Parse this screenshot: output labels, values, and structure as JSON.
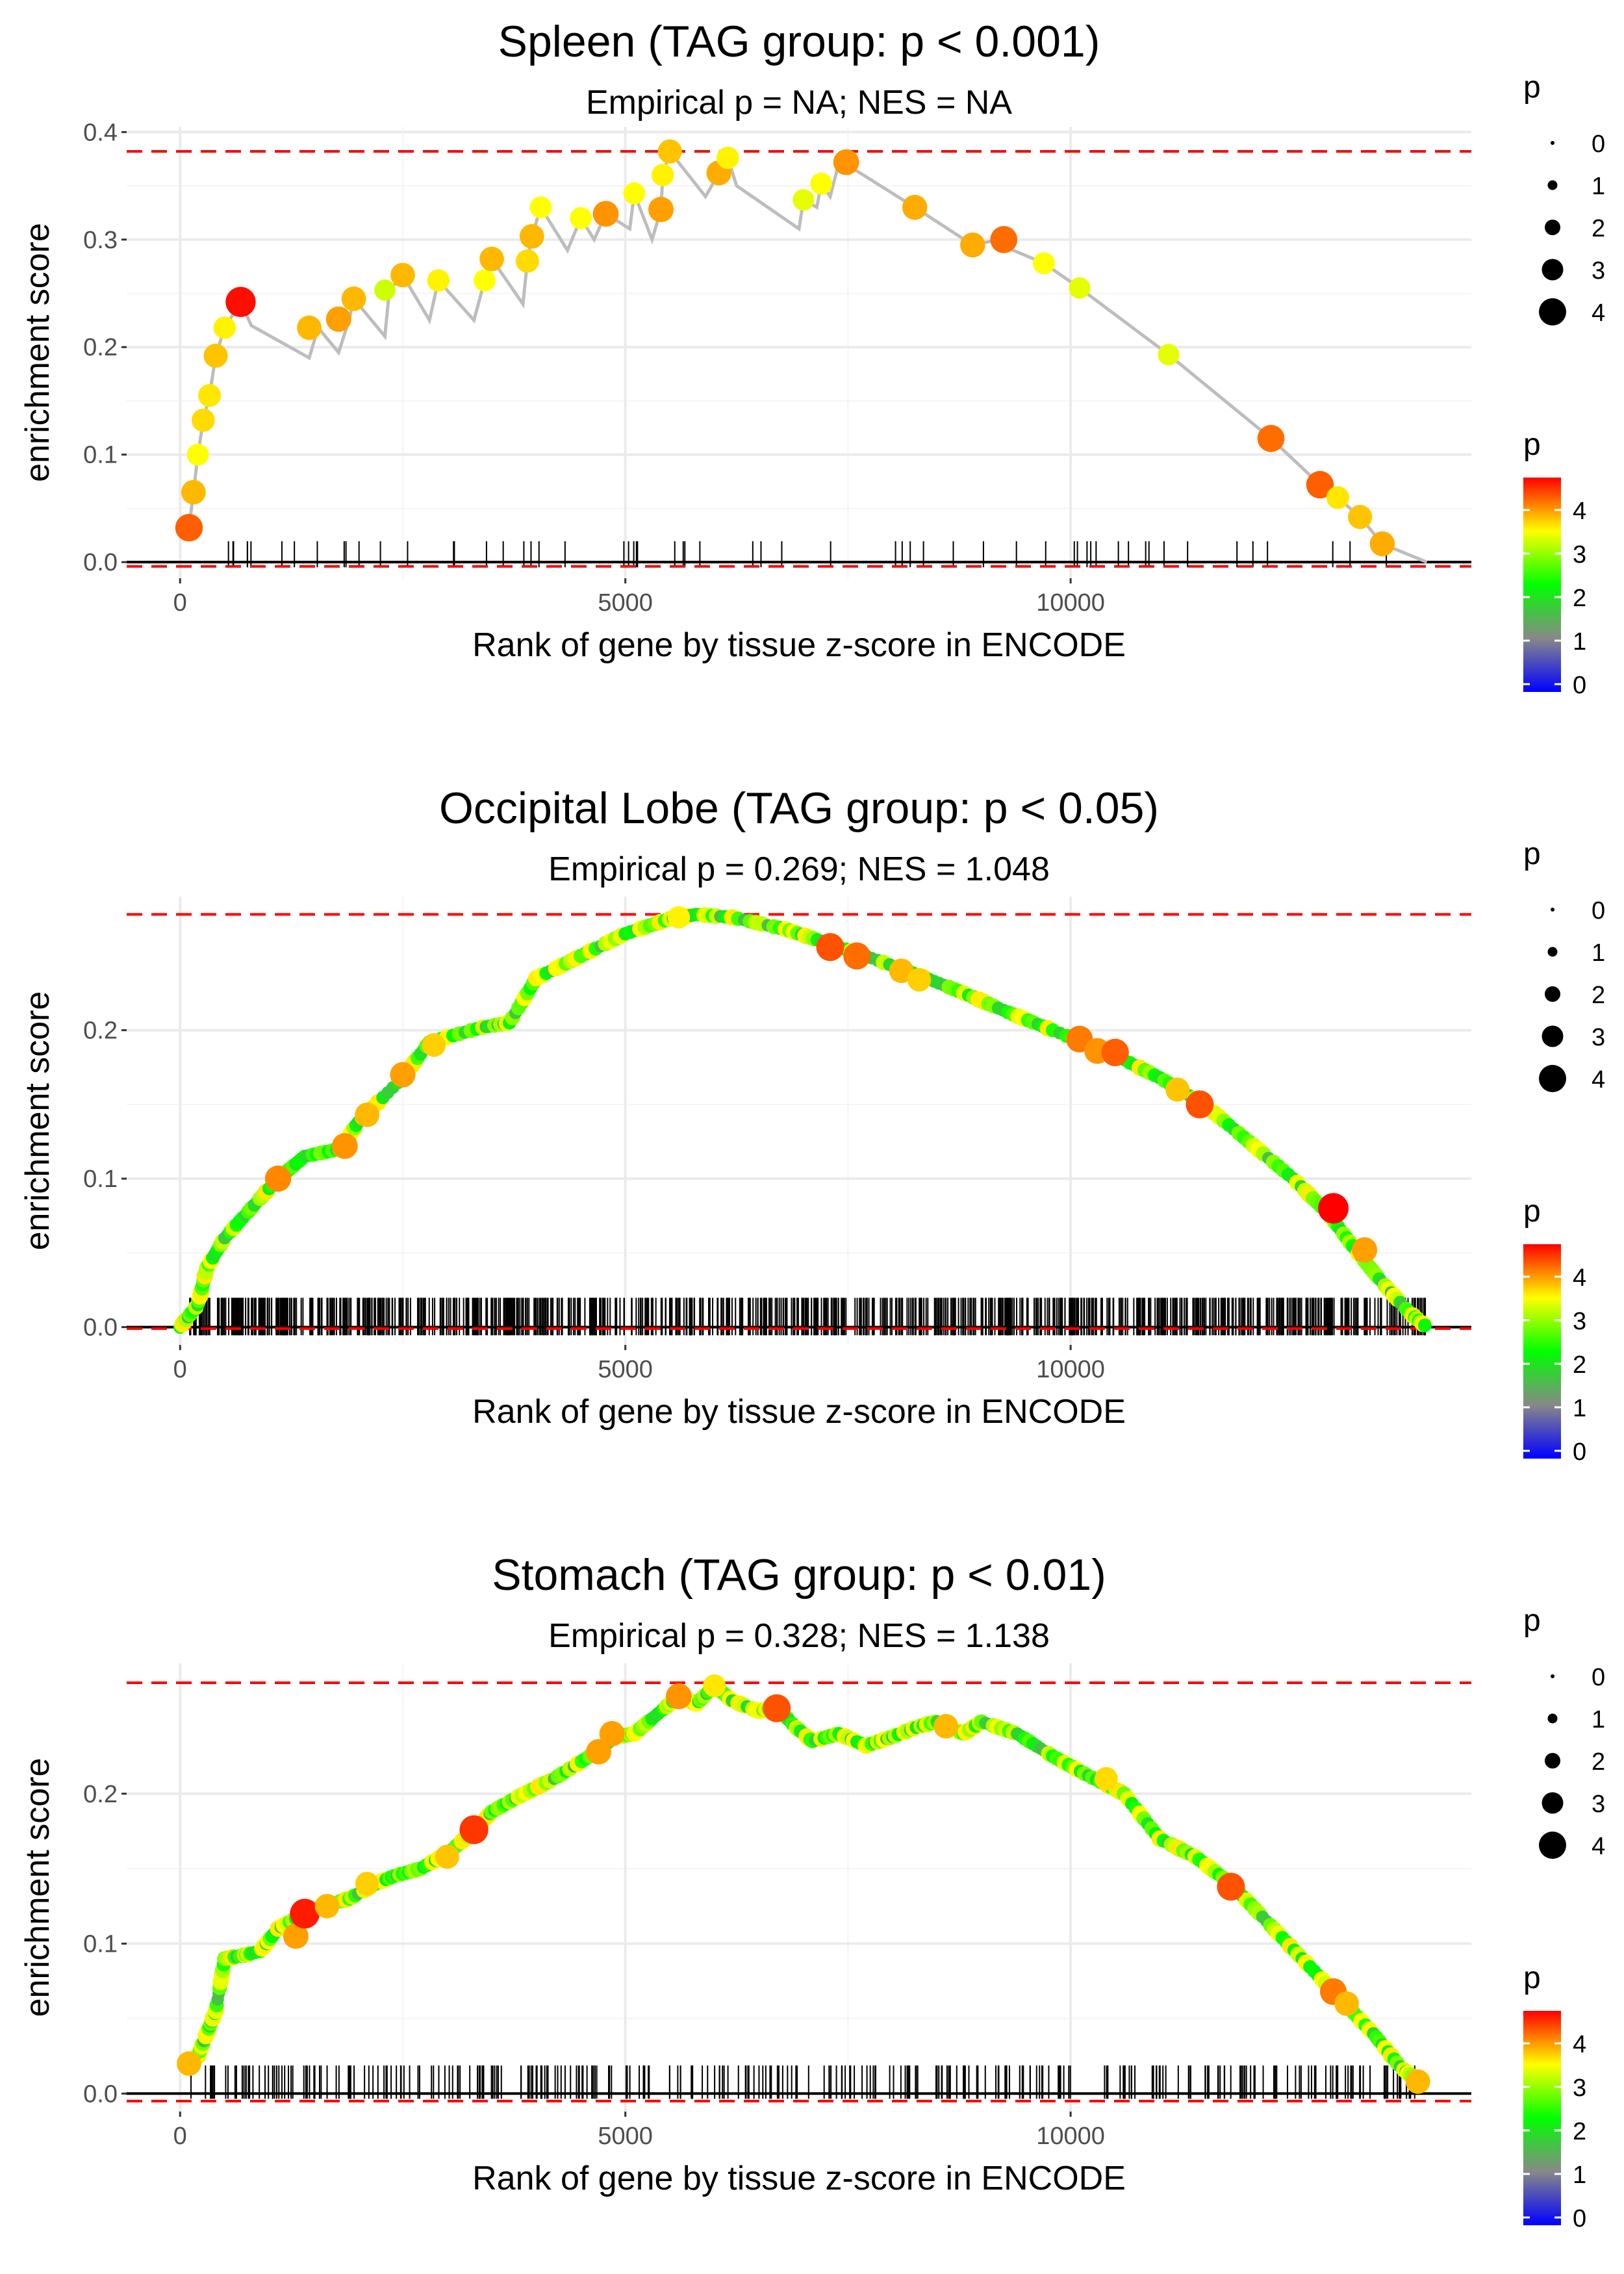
{
  "chart_data": [
    {
      "type": "line",
      "title": "Spleen (TAG group: p < 0.001)",
      "subtitle": "Empirical p = NA; NES = NA",
      "xlabel": "Rank of gene by tissue z-score in ENCODE",
      "ylabel": "enrichment score",
      "xlim": [
        -600,
        14500
      ],
      "ylim": [
        -0.015,
        0.405
      ],
      "xticks": [
        0,
        5000,
        10000
      ],
      "xtick_labels": [
        "0",
        "5000",
        "10000"
      ],
      "yticks": [
        0.0,
        0.1,
        0.2,
        0.3,
        0.4
      ],
      "ytick_labels": [
        "0.0",
        "0.1",
        "0.2",
        "0.3",
        "0.4"
      ],
      "max_es": 0.382,
      "min_es": -0.004,
      "series": [
        {
          "name": "running enrichment score",
          "x": [
            100,
            150,
            200,
            260,
            330,
            400,
            500,
            680,
            800,
            1450,
            1550,
            1780,
            1900,
            1950,
            2300,
            2350,
            2500,
            2800,
            2900,
            3300,
            3420,
            3500,
            3850,
            3900,
            3950,
            4050,
            4350,
            4500,
            4650,
            4780,
            5050,
            5100,
            5300,
            5400,
            5420,
            5500,
            5900,
            6050,
            6150,
            6250,
            6950,
            7000,
            7150,
            7200,
            7300,
            7400,
            7480,
            8250,
            8900,
            9200,
            9300,
            9700,
            10100,
            11100,
            12250,
            12800,
            13000,
            13250,
            13500,
            14000
          ],
          "y": [
            0.032,
            0.065,
            0.1,
            0.132,
            0.155,
            0.192,
            0.218,
            0.242,
            0.22,
            0.19,
            0.218,
            0.195,
            0.226,
            0.245,
            0.21,
            0.253,
            0.267,
            0.225,
            0.262,
            0.225,
            0.262,
            0.282,
            0.24,
            0.28,
            0.303,
            0.33,
            0.29,
            0.32,
            0.3,
            0.324,
            0.31,
            0.343,
            0.3,
            0.328,
            0.36,
            0.382,
            0.34,
            0.362,
            0.376,
            0.35,
            0.31,
            0.337,
            0.33,
            0.352,
            0.34,
            0.372,
            0.37,
            0.33,
            0.295,
            0.3,
            0.292,
            0.278,
            0.255,
            0.193,
            0.115,
            0.072,
            0.06,
            0.042,
            0.017,
            0.0
          ]
        },
        {
          "name": "genes",
          "points": [
            {
              "x": 100,
              "y": 0.032,
              "p": 4.3
            },
            {
              "x": 150,
              "y": 0.065,
              "p": 3.6
            },
            {
              "x": 200,
              "y": 0.1,
              "p": 3.0
            },
            {
              "x": 260,
              "y": 0.132,
              "p": 3.3
            },
            {
              "x": 330,
              "y": 0.155,
              "p": 3.2
            },
            {
              "x": 400,
              "y": 0.192,
              "p": 3.5
            },
            {
              "x": 500,
              "y": 0.218,
              "p": 3.1
            },
            {
              "x": 680,
              "y": 0.242,
              "p": 4.9
            },
            {
              "x": 1450,
              "y": 0.218,
              "p": 3.6
            },
            {
              "x": 1780,
              "y": 0.226,
              "p": 3.8
            },
            {
              "x": 1950,
              "y": 0.245,
              "p": 3.6
            },
            {
              "x": 2300,
              "y": 0.253,
              "p": 2.8
            },
            {
              "x": 2500,
              "y": 0.267,
              "p": 3.6
            },
            {
              "x": 2900,
              "y": 0.262,
              "p": 3.1
            },
            {
              "x": 3420,
              "y": 0.262,
              "p": 3.0
            },
            {
              "x": 3500,
              "y": 0.282,
              "p": 3.6
            },
            {
              "x": 3900,
              "y": 0.28,
              "p": 3.3
            },
            {
              "x": 3950,
              "y": 0.303,
              "p": 3.6
            },
            {
              "x": 4050,
              "y": 0.33,
              "p": 3.0
            },
            {
              "x": 4500,
              "y": 0.32,
              "p": 3.0
            },
            {
              "x": 4780,
              "y": 0.324,
              "p": 3.9
            },
            {
              "x": 5100,
              "y": 0.343,
              "p": 3.0
            },
            {
              "x": 5400,
              "y": 0.328,
              "p": 3.8
            },
            {
              "x": 5420,
              "y": 0.36,
              "p": 3.1
            },
            {
              "x": 5500,
              "y": 0.382,
              "p": 3.5
            },
            {
              "x": 6050,
              "y": 0.362,
              "p": 3.7
            },
            {
              "x": 6150,
              "y": 0.376,
              "p": 3.1
            },
            {
              "x": 7000,
              "y": 0.337,
              "p": 2.9
            },
            {
              "x": 7200,
              "y": 0.352,
              "p": 3.0
            },
            {
              "x": 7480,
              "y": 0.372,
              "p": 3.9
            },
            {
              "x": 8250,
              "y": 0.33,
              "p": 3.7
            },
            {
              "x": 8900,
              "y": 0.295,
              "p": 3.7
            },
            {
              "x": 9250,
              "y": 0.3,
              "p": 4.2
            },
            {
              "x": 9700,
              "y": 0.278,
              "p": 3.0
            },
            {
              "x": 10100,
              "y": 0.255,
              "p": 2.9
            },
            {
              "x": 11100,
              "y": 0.193,
              "p": 2.9
            },
            {
              "x": 12250,
              "y": 0.115,
              "p": 4.2
            },
            {
              "x": 12800,
              "y": 0.072,
              "p": 4.3
            },
            {
              "x": 13000,
              "y": 0.06,
              "p": 3.2
            },
            {
              "x": 13250,
              "y": 0.042,
              "p": 3.5
            },
            {
              "x": 13500,
              "y": 0.017,
              "p": 3.7
            }
          ]
        }
      ],
      "rug": {
        "y0": 0.0,
        "y1": 0.017,
        "n": 60,
        "seed": 11,
        "start": 100,
        "end": 14000
      },
      "point_legend": {
        "title": "p",
        "labels": [
          "0",
          "1",
          "2",
          "3",
          "4"
        ]
      },
      "color_legend": {
        "title": "p",
        "labels": [
          "4",
          "3",
          "2",
          "1",
          "0"
        ],
        "colors": [
          "#ff0000",
          "#ffff00",
          "#00ff00",
          "#888888",
          "#0000ff"
        ]
      }
    },
    {
      "type": "line",
      "title": "Occipital Lobe (TAG group: p < 0.05)",
      "subtitle": "Empirical p = 0.269; NES = 1.048",
      "xlabel": "Rank of gene by tissue z-score in ENCODE",
      "ylabel": "enrichment score",
      "xlim": [
        -600,
        14500
      ],
      "ylim": [
        -0.012,
        0.29
      ],
      "xticks": [
        0,
        5000,
        10000
      ],
      "xtick_labels": [
        "0",
        "5000",
        "10000"
      ],
      "yticks": [
        0.0,
        0.1,
        0.2
      ],
      "ytick_labels": [
        "0.0",
        "0.1",
        "0.2"
      ],
      "max_es": 0.278,
      "min_es": -0.001,
      "series": [
        {
          "name": "running enrichment score",
          "x": [
            0,
            200,
            300,
            500,
            800,
            1100,
            1400,
            1800,
            2000,
            2500,
            2800,
            3400,
            3700,
            4000,
            4500,
            5000,
            5500,
            5800,
            6200,
            6800,
            7200,
            7700,
            8300,
            8800,
            9300,
            9800,
            10500,
            11000,
            11500,
            12000,
            12500,
            12900,
            13200,
            13500,
            13800,
            14000
          ],
          "y": [
            0.0,
            0.015,
            0.04,
            0.06,
            0.08,
            0.1,
            0.115,
            0.12,
            0.138,
            0.168,
            0.192,
            0.202,
            0.205,
            0.235,
            0.25,
            0.265,
            0.275,
            0.278,
            0.276,
            0.268,
            0.26,
            0.25,
            0.237,
            0.225,
            0.212,
            0.2,
            0.183,
            0.168,
            0.15,
            0.125,
            0.1,
            0.076,
            0.052,
            0.03,
            0.01,
            0.0
          ]
        },
        {
          "name": "genes",
          "dense": true,
          "highlight": [
            {
              "x": 1100,
              "y": 0.1,
              "p": 4.0
            },
            {
              "x": 1850,
              "y": 0.122,
              "p": 3.9
            },
            {
              "x": 2100,
              "y": 0.143,
              "p": 3.6
            },
            {
              "x": 2500,
              "y": 0.17,
              "p": 3.8
            },
            {
              "x": 2850,
              "y": 0.19,
              "p": 3.4
            },
            {
              "x": 5600,
              "y": 0.276,
              "p": 3.1
            },
            {
              "x": 7300,
              "y": 0.256,
              "p": 4.4
            },
            {
              "x": 7600,
              "y": 0.25,
              "p": 4.2
            },
            {
              "x": 8100,
              "y": 0.24,
              "p": 3.6
            },
            {
              "x": 8300,
              "y": 0.234,
              "p": 3.4
            },
            {
              "x": 10100,
              "y": 0.194,
              "p": 4.1
            },
            {
              "x": 10300,
              "y": 0.186,
              "p": 3.9
            },
            {
              "x": 10500,
              "y": 0.185,
              "p": 4.3
            },
            {
              "x": 11200,
              "y": 0.16,
              "p": 3.5
            },
            {
              "x": 11450,
              "y": 0.15,
              "p": 4.4
            },
            {
              "x": 12950,
              "y": 0.08,
              "p": 5.0
            },
            {
              "x": 13300,
              "y": 0.052,
              "p": 3.8
            }
          ]
        }
      ],
      "rug": {
        "y0": -0.002,
        "y1": 0.018,
        "n": 900,
        "seed": 23,
        "start": 100,
        "end": 14000
      },
      "point_legend": {
        "title": "p",
        "labels": [
          "0",
          "1",
          "2",
          "3",
          "4"
        ]
      },
      "color_legend": {
        "title": "p",
        "labels": [
          "4",
          "3",
          "2",
          "1",
          "0"
        ],
        "colors": [
          "#ff0000",
          "#ffff00",
          "#00ff00",
          "#888888",
          "#0000ff"
        ]
      }
    },
    {
      "type": "line",
      "title": "Stomach (TAG group: p < 0.01)",
      "subtitle": "Empirical p = 0.328; NES = 1.138",
      "xlabel": "Rank of gene by tissue z-score in ENCODE",
      "ylabel": "enrichment score",
      "xlim": [
        -600,
        14500
      ],
      "ylim": [
        -0.012,
        0.287
      ],
      "xticks": [
        0,
        5000,
        10000
      ],
      "xtick_labels": [
        "0",
        "5000",
        "10000"
      ],
      "yticks": [
        0.0,
        0.1,
        0.2
      ],
      "ytick_labels": [
        "0.0",
        "0.1",
        "0.2"
      ],
      "max_es": 0.274,
      "min_es": -0.005,
      "series": [
        {
          "name": "running enrichment score",
          "x": [
            100,
            200,
            300,
            400,
            500,
            700,
            900,
            1100,
            1400,
            1600,
            1900,
            2200,
            2400,
            2700,
            3000,
            3300,
            3500,
            3800,
            4200,
            4600,
            4900,
            5100,
            5400,
            5600,
            5800,
            6000,
            6200,
            6500,
            6700,
            6900,
            7100,
            7400,
            7700,
            8000,
            8300,
            8500,
            8800,
            9000,
            9400,
            9800,
            10200,
            10600,
            11000,
            11400,
            11800,
            12200,
            12600,
            13000,
            13400,
            13700,
            13900
          ],
          "y": [
            0.02,
            0.025,
            0.04,
            0.055,
            0.09,
            0.092,
            0.095,
            0.11,
            0.12,
            0.125,
            0.13,
            0.14,
            0.145,
            0.15,
            0.16,
            0.175,
            0.188,
            0.198,
            0.21,
            0.225,
            0.238,
            0.24,
            0.255,
            0.265,
            0.26,
            0.272,
            0.262,
            0.255,
            0.258,
            0.245,
            0.235,
            0.24,
            0.232,
            0.238,
            0.245,
            0.248,
            0.24,
            0.248,
            0.24,
            0.225,
            0.212,
            0.2,
            0.17,
            0.158,
            0.14,
            0.115,
            0.09,
            0.065,
            0.04,
            0.018,
            0.008
          ]
        },
        {
          "name": "genes",
          "dense": true,
          "highlight": [
            {
              "x": 100,
              "y": 0.02,
              "p": 3.6
            },
            {
              "x": 1300,
              "y": 0.105,
              "p": 3.8
            },
            {
              "x": 1400,
              "y": 0.12,
              "p": 4.8
            },
            {
              "x": 1650,
              "y": 0.125,
              "p": 3.6
            },
            {
              "x": 2100,
              "y": 0.14,
              "p": 3.4
            },
            {
              "x": 3000,
              "y": 0.158,
              "p": 3.5
            },
            {
              "x": 3300,
              "y": 0.176,
              "p": 4.6
            },
            {
              "x": 4700,
              "y": 0.228,
              "p": 3.8
            },
            {
              "x": 4850,
              "y": 0.24,
              "p": 3.8
            },
            {
              "x": 5600,
              "y": 0.265,
              "p": 3.9
            },
            {
              "x": 6000,
              "y": 0.272,
              "p": 3.2
            },
            {
              "x": 6700,
              "y": 0.257,
              "p": 4.4
            },
            {
              "x": 8600,
              "y": 0.245,
              "p": 3.6
            },
            {
              "x": 10400,
              "y": 0.21,
              "p": 3.3
            },
            {
              "x": 11800,
              "y": 0.138,
              "p": 4.4
            },
            {
              "x": 12950,
              "y": 0.068,
              "p": 4.1
            },
            {
              "x": 13100,
              "y": 0.06,
              "p": 3.6
            },
            {
              "x": 13900,
              "y": 0.008,
              "p": 3.6
            }
          ]
        }
      ],
      "rug": {
        "y0": 0.0,
        "y1": 0.017,
        "n": 330,
        "seed": 37,
        "start": 100,
        "end": 13900
      },
      "point_legend": {
        "title": "p",
        "labels": [
          "0",
          "1",
          "2",
          "3",
          "4"
        ]
      },
      "color_legend": {
        "title": "p",
        "labels": [
          "4",
          "3",
          "2",
          "1",
          "0"
        ],
        "colors": [
          "#ff0000",
          "#ffff00",
          "#00ff00",
          "#888888",
          "#0000ff"
        ]
      }
    }
  ]
}
